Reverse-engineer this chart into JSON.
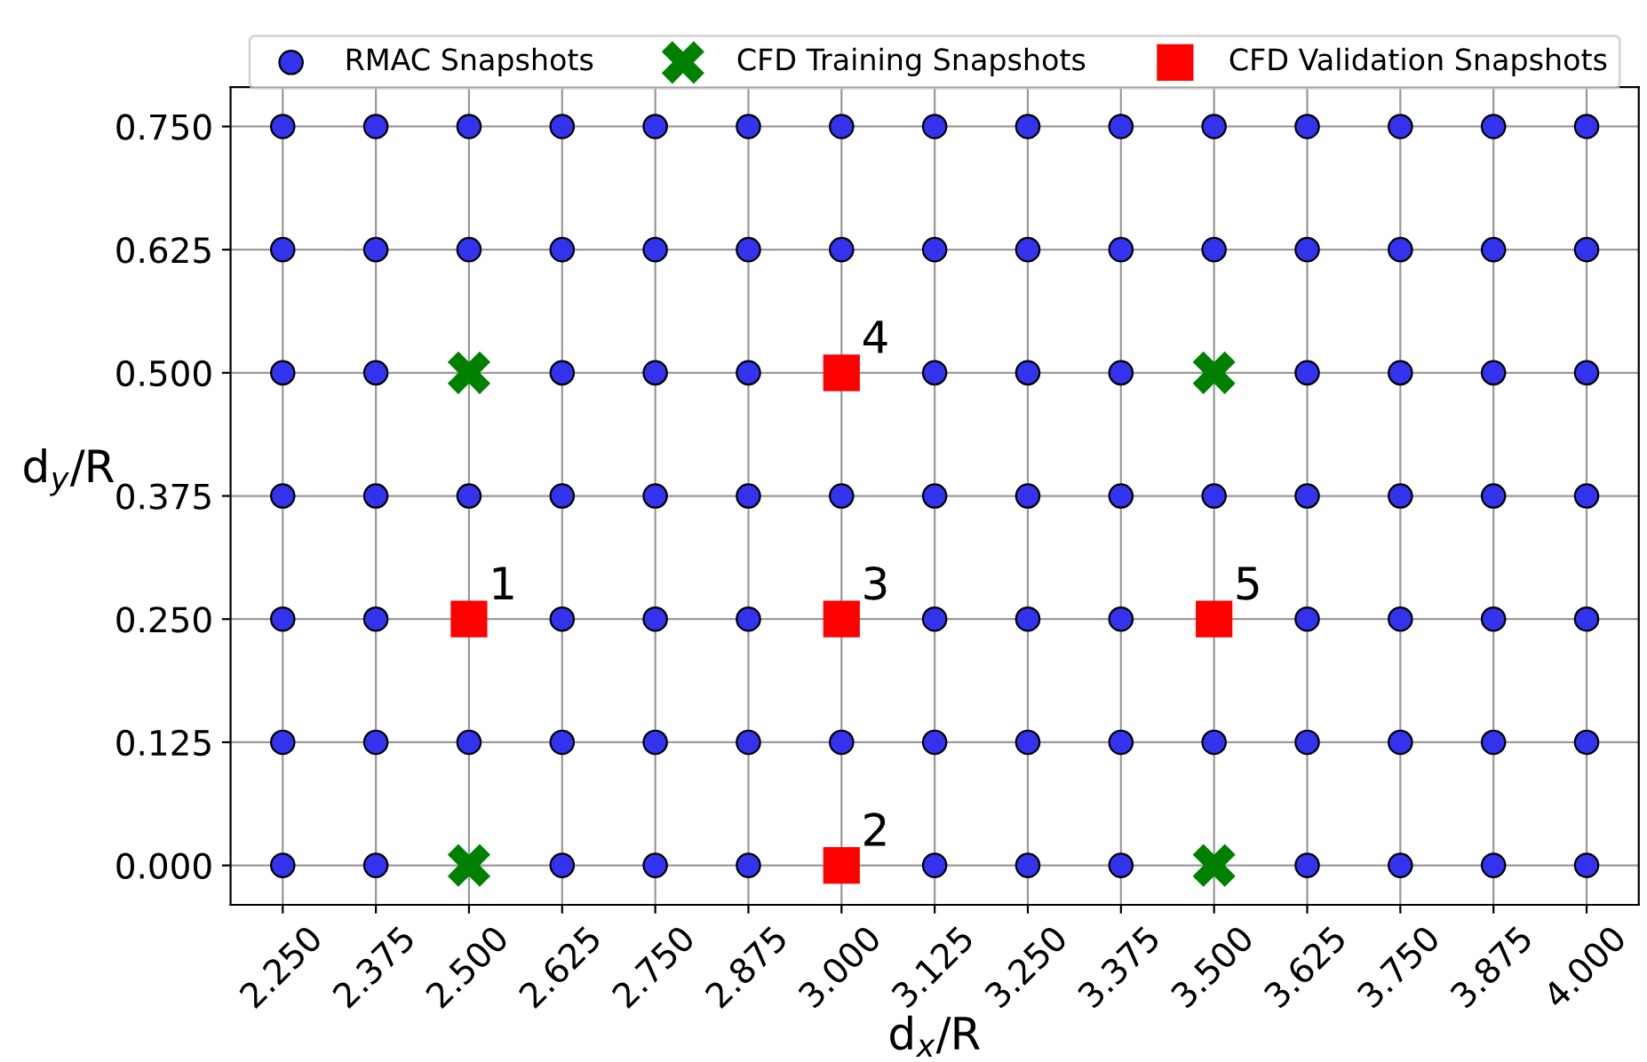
{
  "chart_data": {
    "type": "scatter",
    "xlabel": "d$_{x}$/R",
    "ylabel": "d$_{y}$/R",
    "xlim": [
      2.18,
      4.07
    ],
    "ylim": [
      -0.04,
      0.79
    ],
    "xticks": [
      {
        "value": 2.25,
        "label": "2.250"
      },
      {
        "value": 2.375,
        "label": "2.375"
      },
      {
        "value": 2.5,
        "label": "2.500"
      },
      {
        "value": 2.625,
        "label": "2.625"
      },
      {
        "value": 2.75,
        "label": "2.750"
      },
      {
        "value": 2.875,
        "label": "2.875"
      },
      {
        "value": 3.0,
        "label": "3.000"
      },
      {
        "value": 3.125,
        "label": "3.125"
      },
      {
        "value": 3.25,
        "label": "3.250"
      },
      {
        "value": 3.375,
        "label": "3.375"
      },
      {
        "value": 3.5,
        "label": "3.500"
      },
      {
        "value": 3.625,
        "label": "3.625"
      },
      {
        "value": 3.75,
        "label": "3.750"
      },
      {
        "value": 3.875,
        "label": "3.875"
      },
      {
        "value": 4.0,
        "label": "4.000"
      }
    ],
    "yticks": [
      {
        "value": 0,
        "label": "0.000"
      },
      {
        "value": 0.125,
        "label": "0.125"
      },
      {
        "value": 0.25,
        "label": "0.250"
      },
      {
        "value": 0.375,
        "label": "0.375"
      },
      {
        "value": 0.5,
        "label": "0.500"
      },
      {
        "value": 0.625,
        "label": "0.625"
      },
      {
        "value": 0.75,
        "label": "0.750"
      }
    ],
    "grid": true,
    "legend": "top",
    "series": [
      {
        "name": "RMAC Snapshots",
        "color": "#3333ee",
        "marker": "circle",
        "x": [
          2.25,
          2.375,
          2.5,
          2.625,
          2.75,
          2.875,
          3.0,
          3.125,
          3.25,
          3.375,
          3.5,
          3.625,
          3.75,
          3.875,
          4.0,
          2.25,
          2.375,
          2.5,
          2.625,
          2.75,
          2.875,
          3.0,
          3.125,
          3.25,
          3.375,
          3.5,
          3.625,
          3.75,
          3.875,
          4.0,
          2.25,
          2.375,
          2.625,
          2.75,
          2.875,
          3.125,
          3.25,
          3.375,
          3.625,
          3.75,
          3.875,
          4.0,
          2.25,
          2.375,
          2.5,
          2.625,
          2.75,
          2.875,
          3.0,
          3.125,
          3.25,
          3.375,
          3.5,
          3.625,
          3.75,
          3.875,
          4.0,
          2.25,
          2.375,
          2.625,
          2.75,
          2.875,
          3.125,
          3.25,
          3.375,
          3.625,
          3.75,
          3.875,
          4.0,
          2.25,
          2.375,
          2.5,
          2.625,
          2.75,
          2.875,
          3.0,
          3.125,
          3.25,
          3.375,
          3.5,
          3.625,
          3.75,
          3.875,
          4.0,
          2.25,
          2.375,
          2.625,
          2.75,
          2.875,
          3.125,
          3.25,
          3.375,
          3.625,
          3.75,
          3.875,
          4.0
        ],
        "values": [
          0.75,
          0.75,
          0.75,
          0.75,
          0.75,
          0.75,
          0.75,
          0.75,
          0.75,
          0.75,
          0.75,
          0.75,
          0.75,
          0.75,
          0.75,
          0.625,
          0.625,
          0.625,
          0.625,
          0.625,
          0.625,
          0.625,
          0.625,
          0.625,
          0.625,
          0.625,
          0.625,
          0.625,
          0.625,
          0.625,
          0.5,
          0.5,
          0.5,
          0.5,
          0.5,
          0.5,
          0.5,
          0.5,
          0.5,
          0.5,
          0.5,
          0.5,
          0.375,
          0.375,
          0.375,
          0.375,
          0.375,
          0.375,
          0.375,
          0.375,
          0.375,
          0.375,
          0.375,
          0.375,
          0.375,
          0.375,
          0.375,
          0.25,
          0.25,
          0.25,
          0.25,
          0.25,
          0.25,
          0.25,
          0.25,
          0.25,
          0.25,
          0.25,
          0.25,
          0.125,
          0.125,
          0.125,
          0.125,
          0.125,
          0.125,
          0.125,
          0.125,
          0.125,
          0.125,
          0.125,
          0.125,
          0.125,
          0.125,
          0.125,
          0,
          0,
          0,
          0,
          0,
          0,
          0,
          0,
          0,
          0,
          0,
          0
        ]
      },
      {
        "name": "CFD Training Snapshots",
        "color": "#008000",
        "marker": "cross",
        "x": [
          2.5,
          3.5,
          2.5,
          3.5
        ],
        "values": [
          0.5,
          0.5,
          0,
          0
        ]
      },
      {
        "name": "CFD Validation Snapshots",
        "color": "#ff0000",
        "marker": "square",
        "x": [
          2.5,
          3.0,
          3.0,
          3.0,
          3.5
        ],
        "values": [
          0.25,
          0,
          0.25,
          0.5,
          0.25
        ]
      }
    ],
    "annotations": [
      {
        "text": "1",
        "x": 2.5,
        "y": 0.25
      },
      {
        "text": "2",
        "x": 3.0,
        "y": 0
      },
      {
        "text": "3",
        "x": 3.0,
        "y": 0.25
      },
      {
        "text": "4",
        "x": 3.0,
        "y": 0.5
      },
      {
        "text": "5",
        "x": 3.5,
        "y": 0.25
      }
    ]
  }
}
